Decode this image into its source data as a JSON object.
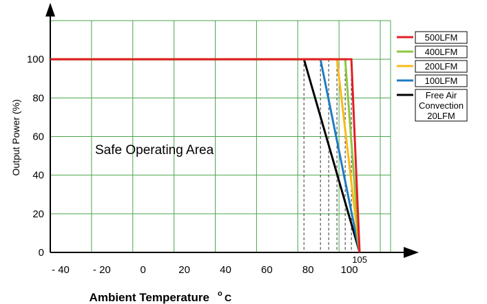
{
  "chart_data": {
    "type": "line",
    "title": "",
    "xlabel": "Ambient Temperature",
    "xunit_sup": "o",
    "xunit": "C",
    "ylabel": "Output Power (%)",
    "xlim": [
      -45,
      120
    ],
    "ylim": [
      0,
      120
    ],
    "xticks": [
      {
        "value": -40,
        "label": "- 40"
      },
      {
        "value": -20,
        "label": "- 20"
      },
      {
        "value": 0,
        "label": "0"
      },
      {
        "value": 20,
        "label": "20"
      },
      {
        "value": 40,
        "label": "40"
      },
      {
        "value": 60,
        "label": "60"
      },
      {
        "value": 80,
        "label": "80"
      },
      {
        "value": 100,
        "label": "100"
      }
    ],
    "yticks": [
      {
        "value": 0,
        "label": "0"
      },
      {
        "value": 20,
        "label": "20"
      },
      {
        "value": 40,
        "label": "40"
      },
      {
        "value": 60,
        "label": "60"
      },
      {
        "value": 80,
        "label": "80"
      },
      {
        "value": 100,
        "label": "100"
      }
    ],
    "grid_x": [
      -45,
      -25,
      -5,
      15,
      35,
      55,
      75,
      95,
      115,
      120
    ],
    "grid_y": [
      0,
      20,
      40,
      60,
      80,
      100,
      120
    ],
    "grid": true,
    "grid_color": "#4aa54a",
    "end_label": {
      "text": "105",
      "x": 105
    },
    "annotation": {
      "text": "Safe Operating Area",
      "x": -25,
      "y": 52
    },
    "legend_position": "right",
    "series": [
      {
        "name": "500LFM",
        "color": "#e31e24",
        "x": [
          -45,
          101,
          105
        ],
        "y": [
          100,
          100,
          0
        ]
      },
      {
        "name": "400LFM",
        "color": "#8ec63f",
        "x": [
          -45,
          98,
          105
        ],
        "y": [
          100,
          100,
          0
        ]
      },
      {
        "name": "200LFM",
        "color": "#fbb917",
        "x": [
          -45,
          94,
          105
        ],
        "y": [
          100,
          100,
          0
        ]
      },
      {
        "name": "100LFM",
        "color": "#1f7ac1",
        "x": [
          -45,
          86,
          105
        ],
        "y": [
          100,
          100,
          0
        ]
      },
      {
        "name": "Free Air Convection 20LFM",
        "lines": [
          "Free Air",
          "Convection",
          "20LFM"
        ],
        "color": "#000000",
        "x": [
          -45,
          78,
          105
        ],
        "y": [
          100,
          100,
          0
        ]
      }
    ],
    "dropline_x": [
      78,
      86,
      90,
      94,
      98,
      101
    ]
  }
}
